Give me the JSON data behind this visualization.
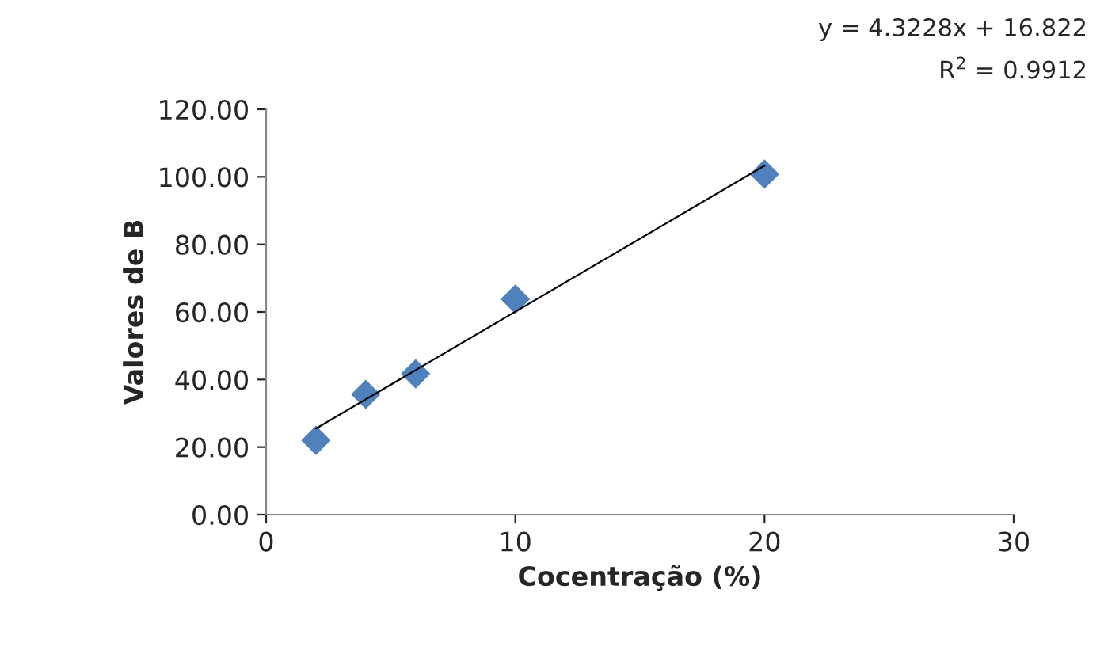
{
  "chart_data": {
    "type": "scatter",
    "xlabel": "Cocentração (%)",
    "ylabel": "Valores de B",
    "series": [
      {
        "color": "#4f81bd",
        "marker": "diamond",
        "x": [
          2,
          4,
          6,
          10,
          20
        ],
        "values": [
          22.0,
          35.6,
          41.7,
          63.8,
          100.8
        ]
      },
      {
        "type": "line",
        "color": "#000000",
        "marker": "none",
        "x": [
          2,
          20
        ],
        "values": [
          25.5,
          103.3
        ]
      }
    ],
    "xlim": [
      0,
      30
    ],
    "xticks": [
      0,
      10,
      20,
      30
    ],
    "ylim": [
      0,
      120
    ],
    "yticks": [
      {
        "value": 0,
        "label": "0.00"
      },
      {
        "value": 20,
        "label": "20.00"
      },
      {
        "value": 40,
        "label": "40.00"
      },
      {
        "value": 60,
        "label": "60.00"
      },
      {
        "value": 80,
        "label": "80.00"
      },
      {
        "value": 100,
        "label": "100.00"
      },
      {
        "value": 120,
        "label": "120.00"
      }
    ],
    "annotations": [
      "y = 4.3228x + 16.822",
      "R$^{2}$ = 0.9912"
    ],
    "grid": false,
    "legend": false
  }
}
